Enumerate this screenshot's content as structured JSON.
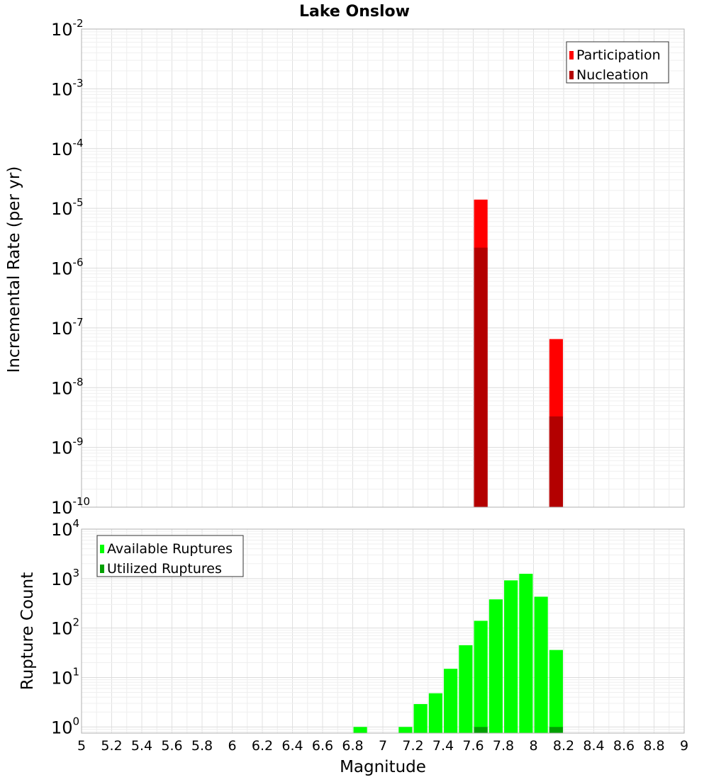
{
  "chart_data": [
    {
      "type": "bar",
      "title": "Lake Onslow",
      "xlabel": "",
      "ylabel": "Incremental Rate (per yr)",
      "xlim": [
        5,
        9
      ],
      "ylim": [
        1e-10,
        0.01
      ],
      "yscale": "log",
      "y_tick_exponents": [
        "-2",
        "-3",
        "-4",
        "-5",
        "-6",
        "-7",
        "-8",
        "-9",
        "-10"
      ],
      "grid": true,
      "legend_position": "top-right",
      "bar_width": 0.09,
      "series": [
        {
          "name": "Participation",
          "color": "#ff0000",
          "points": [
            {
              "x": 7.65,
              "y": 1.4e-05
            },
            {
              "x": 8.15,
              "y": 6.5e-08
            }
          ]
        },
        {
          "name": "Nucleation",
          "color": "#b30000",
          "points": [
            {
              "x": 7.65,
              "y": 2.2e-06
            },
            {
              "x": 8.15,
              "y": 3.3e-09
            }
          ]
        }
      ]
    },
    {
      "type": "bar",
      "title": "",
      "xlabel": "Magnitude",
      "ylabel": "Rupture Count",
      "xlim": [
        5,
        9
      ],
      "ylim": [
        0.75,
        10000
      ],
      "yscale": "log",
      "y_tick_exponents": [
        "0",
        "1",
        "2",
        "3",
        "4"
      ],
      "x_tick_labels": [
        "5",
        "5.2",
        "5.4",
        "5.6",
        "5.8",
        "6",
        "6.2",
        "6.4",
        "6.6",
        "6.8",
        "7",
        "7.2",
        "7.4",
        "7.6",
        "7.8",
        "8",
        "8.2",
        "8.4",
        "8.6",
        "8.8",
        "9"
      ],
      "grid": true,
      "legend_position": "top-left",
      "bar_width": 0.09,
      "series": [
        {
          "name": "Available Ruptures",
          "color": "#00ff00",
          "points": [
            {
              "x": 6.85,
              "y": 1
            },
            {
              "x": 7.15,
              "y": 1
            },
            {
              "x": 7.25,
              "y": 2.9
            },
            {
              "x": 7.35,
              "y": 4.8
            },
            {
              "x": 7.45,
              "y": 15
            },
            {
              "x": 7.55,
              "y": 45
            },
            {
              "x": 7.65,
              "y": 140
            },
            {
              "x": 7.75,
              "y": 380
            },
            {
              "x": 7.85,
              "y": 920
            },
            {
              "x": 7.95,
              "y": 1250
            },
            {
              "x": 8.05,
              "y": 430
            },
            {
              "x": 8.15,
              "y": 36
            }
          ]
        },
        {
          "name": "Utilized Ruptures",
          "color": "#00a000",
          "points": [
            {
              "x": 7.65,
              "y": 1
            },
            {
              "x": 8.15,
              "y": 1
            }
          ]
        }
      ]
    }
  ]
}
